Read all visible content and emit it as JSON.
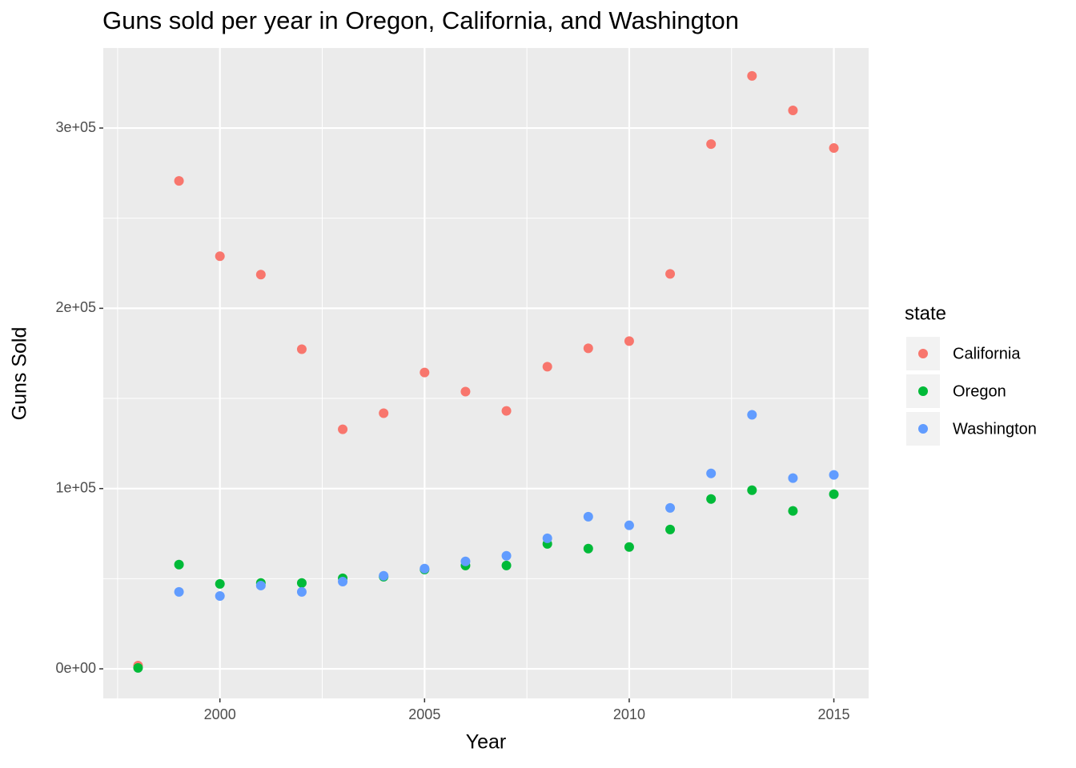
{
  "chart_data": {
    "type": "scatter",
    "title": "Guns sold per year in Oregon, California, and Washington",
    "x_label": "Year",
    "y_label": "Guns Sold",
    "legend_title": "state",
    "x": [
      1998,
      1999,
      2000,
      2001,
      2002,
      2003,
      2004,
      2005,
      2006,
      2007,
      2008,
      2009,
      2010,
      2011,
      2012,
      2013,
      2014,
      2015
    ],
    "series": [
      {
        "name": "California",
        "color": "#F8766D",
        "values": [
          1800,
          270700,
          228900,
          218700,
          177300,
          132900,
          141800,
          164400,
          153800,
          143100,
          167600,
          177800,
          181800,
          219100,
          291100,
          328900,
          309800,
          288900
        ]
      },
      {
        "name": "Oregon",
        "color": "#00BA38",
        "values": [
          500,
          57800,
          47100,
          47600,
          47600,
          50200,
          51100,
          55100,
          57300,
          57300,
          69300,
          66700,
          67600,
          77300,
          94200,
          99100,
          87600,
          96900
        ]
      },
      {
        "name": "Washington",
        "color": "#619CFF",
        "values": [
          null,
          42700,
          40400,
          46200,
          42700,
          48400,
          51600,
          55600,
          59600,
          62700,
          72400,
          84400,
          79600,
          89300,
          108400,
          140900,
          105800,
          107600
        ]
      }
    ],
    "xlim": [
      1997.15,
      2015.85
    ],
    "xticks": [
      2000,
      2005,
      2010,
      2015
    ],
    "ylim": [
      -16400,
      344400
    ],
    "yticks": [
      {
        "value": 0,
        "label": "0e+00"
      },
      {
        "value": 100000,
        "label": "1e+05"
      },
      {
        "value": 200000,
        "label": "2e+05"
      },
      {
        "value": 300000,
        "label": "3e+05"
      }
    ],
    "grid": true,
    "legend": "right"
  }
}
